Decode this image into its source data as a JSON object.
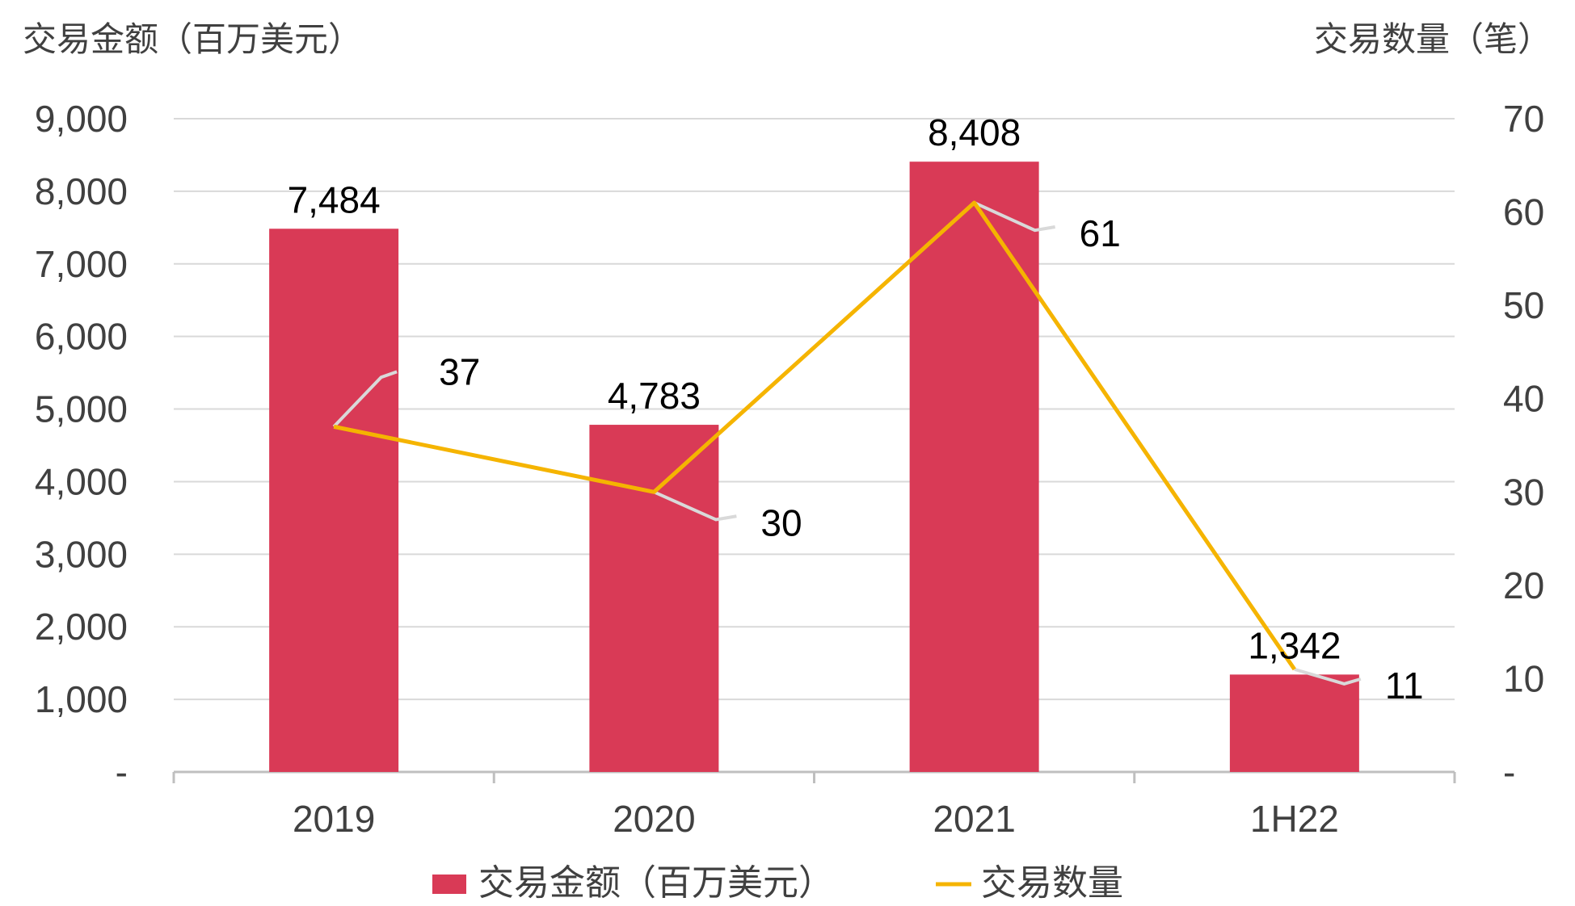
{
  "chart_data": {
    "type": "bar",
    "categories": [
      "2019",
      "2020",
      "2021",
      "1H22"
    ],
    "y_left_title": "交易金额（百万美元）",
    "y_right_title": "交易数量（笔）",
    "y_left": {
      "min": 0,
      "max": 9000,
      "step": 1000,
      "tick_labels": [
        "-",
        "1,000",
        "2,000",
        "3,000",
        "4,000",
        "5,000",
        "6,000",
        "7,000",
        "8,000",
        "9,000"
      ]
    },
    "y_right": {
      "min": 0,
      "max": 70,
      "step": 10,
      "tick_labels": [
        "-",
        "10",
        "20",
        "30",
        "40",
        "50",
        "60",
        "70"
      ]
    },
    "series": [
      {
        "name": "交易金额（百万美元）",
        "kind": "bar",
        "axis": "left",
        "color": "#D93A56",
        "values": [
          7484,
          4783,
          8408,
          1342
        ],
        "labels": [
          "7,484",
          "4,783",
          "8,408",
          "1,342"
        ]
      },
      {
        "name": "交易数量",
        "kind": "line",
        "axis": "right",
        "color": "#F5B400",
        "values": [
          37,
          30,
          61,
          11
        ],
        "labels": [
          "37",
          "30",
          "61",
          "11"
        ]
      }
    ],
    "grid": true,
    "legend_position": "bottom-center",
    "leader_line_color": "#D9D9D9"
  }
}
